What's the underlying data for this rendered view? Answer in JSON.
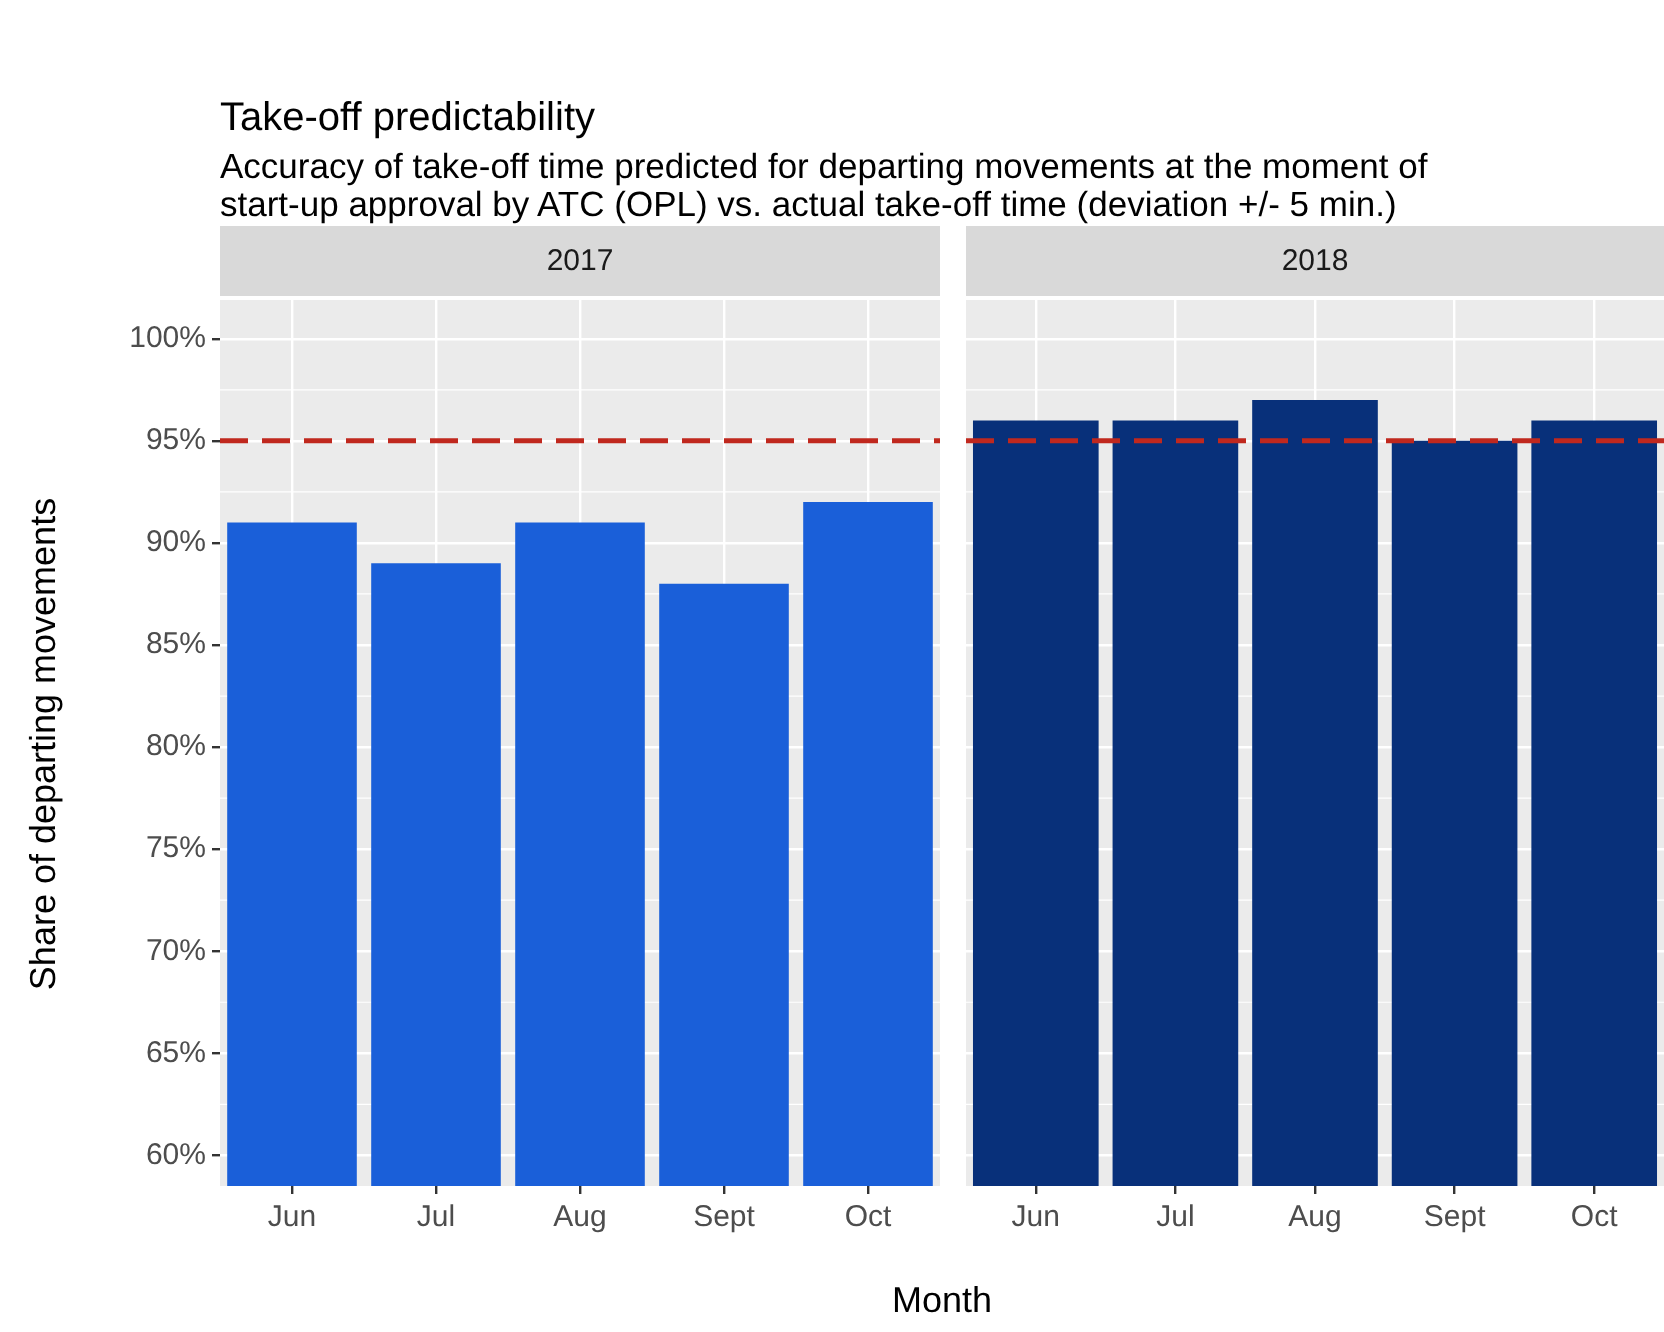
{
  "chart_data": [
    {
      "type": "bar",
      "title": "Take-off predictability",
      "subtitle": "Accuracy of take-off time predicted for departing movements at the moment of start-up approval by ATC (OPL) vs. actual take-off time (deviation +/- 5 min.)",
      "xlabel": "Month",
      "ylabel": "Share of departing movements",
      "annotations": [
        "2017"
      ],
      "categories": [
        "Jun",
        "Jul",
        "Aug",
        "Sept",
        "Oct"
      ],
      "values": [
        91,
        89,
        91,
        88,
        92
      ],
      "color": "#1a5fd9",
      "ylim": [
        58.5,
        101.9
      ],
      "yticks": [
        {
          "value": 60,
          "label": "60%"
        },
        {
          "value": 65,
          "label": "65%"
        },
        {
          "value": 70,
          "label": "70%"
        },
        {
          "value": 75,
          "label": "75%"
        },
        {
          "value": 80,
          "label": "80%"
        },
        {
          "value": 85,
          "label": "85%"
        },
        {
          "value": 90,
          "label": "90%"
        },
        {
          "value": 95,
          "label": "95%"
        },
        {
          "value": 100,
          "label": "100%"
        }
      ],
      "grid": true,
      "ref_lines": [
        {
          "axis": "y",
          "value": 95,
          "color": "#c0281e",
          "line_style": "dashed"
        }
      ]
    },
    {
      "type": "bar",
      "annotations": [
        "2018"
      ],
      "categories": [
        "Jun",
        "Jul",
        "Aug",
        "Sept",
        "Oct"
      ],
      "values": [
        96,
        96,
        97,
        95,
        96
      ],
      "color": "#08307a",
      "ylim": [
        58.5,
        101.9
      ],
      "yticks": [
        60,
        65,
        70,
        75,
        80,
        85,
        90,
        95,
        100
      ],
      "grid": true,
      "tick_labels": "x",
      "ref_lines": [
        {
          "axis": "y",
          "value": 95,
          "color": "#c0281e",
          "line_style": "dashed"
        }
      ]
    }
  ]
}
